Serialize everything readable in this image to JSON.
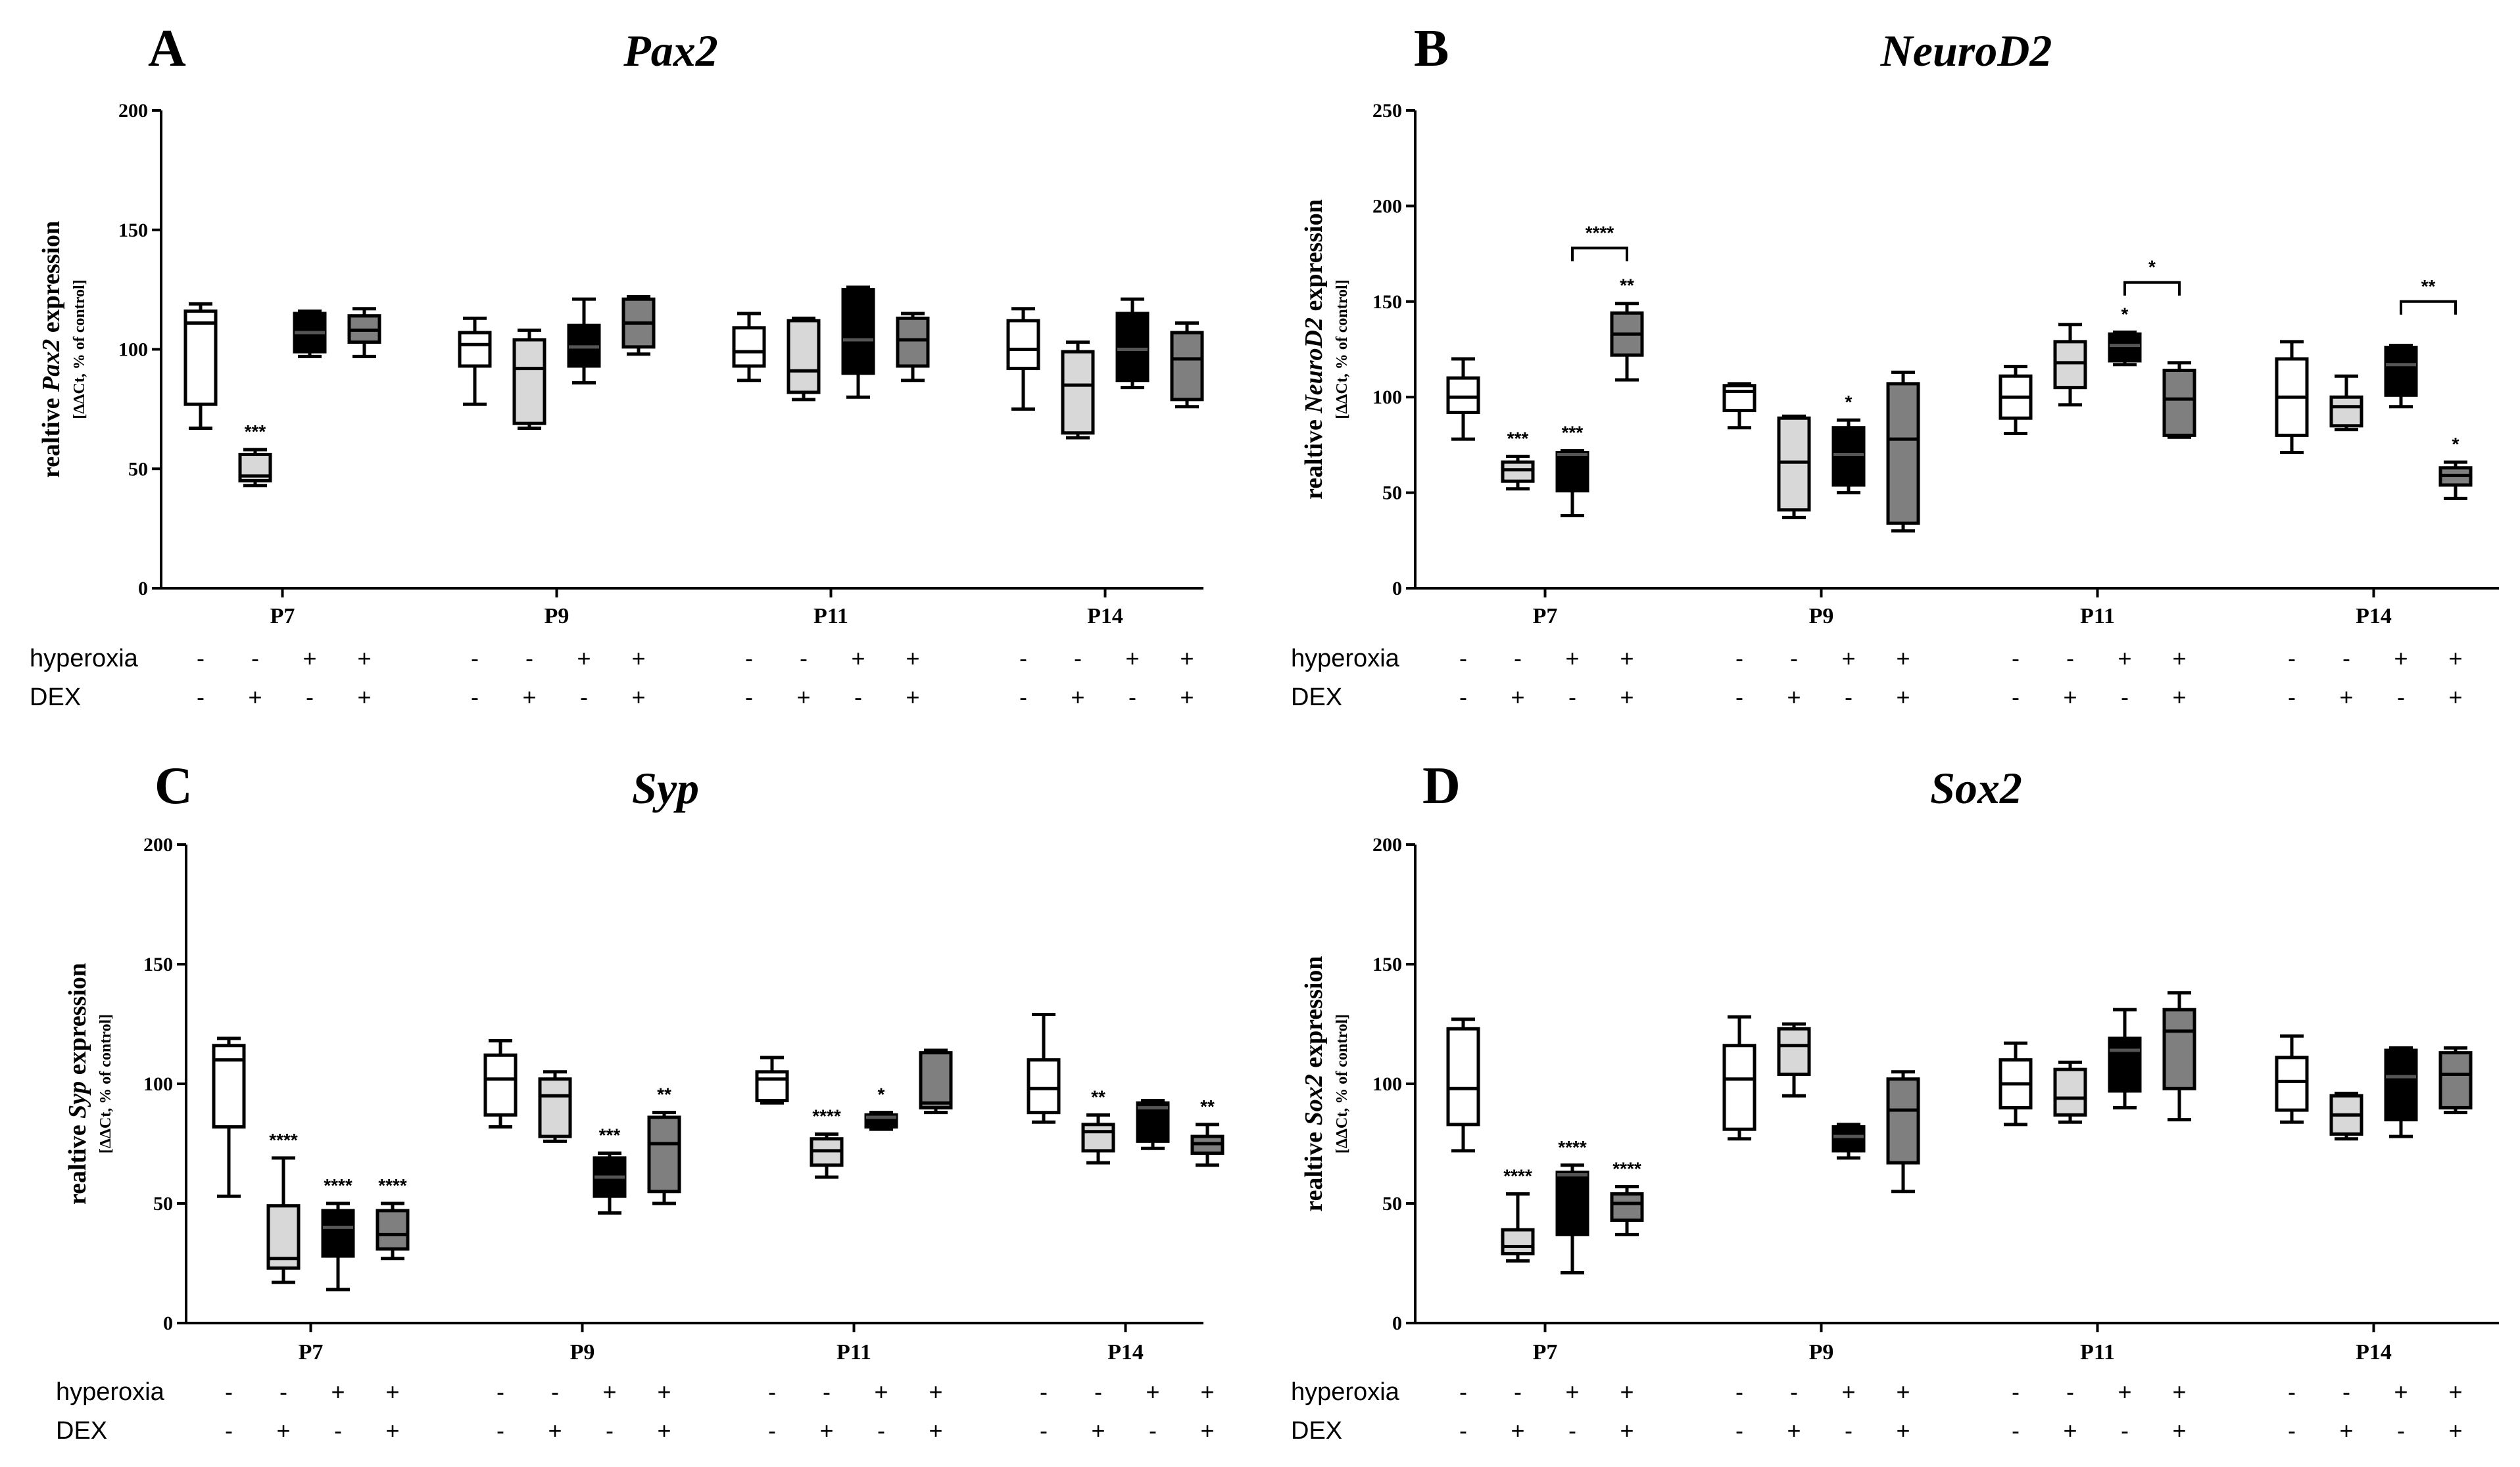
{
  "chart_data": [
    {
      "panel": "A",
      "type": "box",
      "title": "Pax2",
      "ylabel_parts": [
        "realtive ",
        "Pax2",
        " expression"
      ],
      "yunits": "[ΔΔCt, % of control]",
      "ylim": [
        0,
        200
      ],
      "yticks": [
        0,
        50,
        100,
        150,
        200
      ],
      "categories": [
        "P7",
        "P9",
        "P11",
        "P14"
      ],
      "treatments": {
        "hyperoxia_label": "hyperoxia",
        "dex_label": "DEX",
        "hyperoxia": [
          "-",
          "-",
          "+",
          "+"
        ],
        "dex": [
          "-",
          "+",
          "-",
          "+"
        ]
      },
      "groups": [
        {
          "name": "P7",
          "boxes": [
            {
              "min": 67,
              "q1": 77,
              "median": 111,
              "q3": 116,
              "max": 119
            },
            {
              "min": 43,
              "q1": 45,
              "median": 47,
              "q3": 56,
              "max": 58,
              "stars": "***"
            },
            {
              "min": 97,
              "q1": 99,
              "median": 107,
              "q3": 115,
              "max": 116
            },
            {
              "min": 97,
              "q1": 103,
              "median": 108,
              "q3": 114,
              "max": 117
            }
          ]
        },
        {
          "name": "P9",
          "boxes": [
            {
              "min": 77,
              "q1": 93,
              "median": 102,
              "q3": 107,
              "max": 113
            },
            {
              "min": 67,
              "q1": 69,
              "median": 92,
              "q3": 104,
              "max": 108
            },
            {
              "min": 86,
              "q1": 93,
              "median": 101,
              "q3": 110,
              "max": 121
            },
            {
              "min": 98,
              "q1": 101,
              "median": 111,
              "q3": 121,
              "max": 122
            }
          ]
        },
        {
          "name": "P11",
          "boxes": [
            {
              "min": 87,
              "q1": 93,
              "median": 99,
              "q3": 109,
              "max": 115
            },
            {
              "min": 79,
              "q1": 82,
              "median": 91,
              "q3": 112,
              "max": 113
            },
            {
              "min": 80,
              "q1": 90,
              "median": 104,
              "q3": 125,
              "max": 126
            },
            {
              "min": 87,
              "q1": 93,
              "median": 104,
              "q3": 113,
              "max": 115
            }
          ]
        },
        {
          "name": "P14",
          "boxes": [
            {
              "min": 75,
              "q1": 92,
              "median": 100,
              "q3": 112,
              "max": 117
            },
            {
              "min": 63,
              "q1": 65,
              "median": 85,
              "q3": 99,
              "max": 103
            },
            {
              "min": 84,
              "q1": 87,
              "median": 100,
              "q3": 115,
              "max": 121
            },
            {
              "min": 76,
              "q1": 79,
              "median": 96,
              "q3": 107,
              "max": 111
            }
          ]
        }
      ],
      "brackets": []
    },
    {
      "panel": "B",
      "type": "box",
      "title": "NeuroD2",
      "ylabel_parts": [
        "realtive ",
        "NeuroD2",
        " expression"
      ],
      "yunits": "[ΔΔCt, % of control]",
      "ylim": [
        0,
        250
      ],
      "yticks": [
        0,
        50,
        100,
        150,
        200,
        250
      ],
      "categories": [
        "P7",
        "P9",
        "P11",
        "P14"
      ],
      "treatments": {
        "hyperoxia_label": "hyperoxia",
        "dex_label": "DEX",
        "hyperoxia": [
          "-",
          "-",
          "+",
          "+"
        ],
        "dex": [
          "-",
          "+",
          "-",
          "+"
        ]
      },
      "groups": [
        {
          "name": "P7",
          "boxes": [
            {
              "min": 78,
              "q1": 92,
              "median": 100,
              "q3": 110,
              "max": 120
            },
            {
              "min": 52,
              "q1": 56,
              "median": 62,
              "q3": 66,
              "max": 69,
              "stars": "***"
            },
            {
              "min": 38,
              "q1": 51,
              "median": 70,
              "q3": 71,
              "max": 72,
              "stars": "***"
            },
            {
              "min": 109,
              "q1": 122,
              "median": 133,
              "q3": 144,
              "max": 149,
              "stars": "**"
            }
          ]
        },
        {
          "name": "P9",
          "boxes": [
            {
              "min": 84,
              "q1": 93,
              "median": 103,
              "q3": 106,
              "max": 107
            },
            {
              "min": 37,
              "q1": 41,
              "median": 66,
              "q3": 89,
              "max": 90
            },
            {
              "min": 50,
              "q1": 54,
              "median": 70,
              "q3": 84,
              "max": 88,
              "stars": "*"
            },
            {
              "min": 30,
              "q1": 34,
              "median": 78,
              "q3": 107,
              "max": 113
            }
          ]
        },
        {
          "name": "P11",
          "boxes": [
            {
              "min": 81,
              "q1": 89,
              "median": 100,
              "q3": 111,
              "max": 116
            },
            {
              "min": 96,
              "q1": 105,
              "median": 118,
              "q3": 129,
              "max": 138
            },
            {
              "min": 117,
              "q1": 119,
              "median": 127,
              "q3": 133,
              "max": 134,
              "stars": "*"
            },
            {
              "min": 79,
              "q1": 80,
              "median": 99,
              "q3": 114,
              "max": 118
            }
          ]
        },
        {
          "name": "P14",
          "boxes": [
            {
              "min": 71,
              "q1": 80,
              "median": 100,
              "q3": 120,
              "max": 129
            },
            {
              "min": 83,
              "q1": 85,
              "median": 95,
              "q3": 100,
              "max": 111
            },
            {
              "min": 95,
              "q1": 101,
              "median": 117,
              "q3": 126,
              "max": 127
            },
            {
              "min": 47,
              "q1": 54,
              "median": 59,
              "q3": 63,
              "max": 66,
              "stars": "*"
            }
          ]
        }
      ],
      "brackets": [
        {
          "group": 0,
          "from": 2,
          "to": 3,
          "level": 178,
          "stars": "****"
        },
        {
          "group": 2,
          "from": 2,
          "to": 3,
          "level": 160,
          "stars": "*"
        },
        {
          "group": 3,
          "from": 2,
          "to": 3,
          "level": 150,
          "stars": "**"
        }
      ]
    },
    {
      "panel": "C",
      "type": "box",
      "title": "Syp",
      "ylabel_parts": [
        "realtive ",
        "Syp",
        " expression"
      ],
      "yunits": "[ΔΔCt, % of control]",
      "ylim": [
        0,
        200
      ],
      "yticks": [
        0,
        50,
        100,
        150,
        200
      ],
      "categories": [
        "P7",
        "P9",
        "P11",
        "P14"
      ],
      "treatments": {
        "hyperoxia_label": "hyperoxia",
        "dex_label": "DEX",
        "hyperoxia": [
          "-",
          "-",
          "+",
          "+"
        ],
        "dex": [
          "-",
          "+",
          "-",
          "+"
        ]
      },
      "groups": [
        {
          "name": "P7",
          "boxes": [
            {
              "min": 53,
              "q1": 82,
              "median": 110,
              "q3": 116,
              "max": 119
            },
            {
              "min": 17,
              "q1": 23,
              "median": 27,
              "q3": 49,
              "max": 69,
              "stars": "****"
            },
            {
              "min": 14,
              "q1": 28,
              "median": 40,
              "q3": 47,
              "max": 50,
              "stars": "****"
            },
            {
              "min": 27,
              "q1": 31,
              "median": 37,
              "q3": 47,
              "max": 50,
              "stars": "****"
            }
          ]
        },
        {
          "name": "P9",
          "boxes": [
            {
              "min": 82,
              "q1": 87,
              "median": 102,
              "q3": 112,
              "max": 118
            },
            {
              "min": 76,
              "q1": 78,
              "median": 95,
              "q3": 102,
              "max": 105
            },
            {
              "min": 46,
              "q1": 53,
              "median": 61,
              "q3": 69,
              "max": 71,
              "stars": "***"
            },
            {
              "min": 50,
              "q1": 55,
              "median": 75,
              "q3": 86,
              "max": 88,
              "stars": "**"
            }
          ]
        },
        {
          "name": "P11",
          "boxes": [
            {
              "min": 92,
              "q1": 93,
              "median": 102,
              "q3": 105,
              "max": 111
            },
            {
              "min": 61,
              "q1": 66,
              "median": 72,
              "q3": 77,
              "max": 79,
              "stars": "****"
            },
            {
              "min": 81,
              "q1": 82,
              "median": 86,
              "q3": 87,
              "max": 88,
              "stars": "*"
            },
            {
              "min": 88,
              "q1": 90,
              "median": 92,
              "q3": 113,
              "max": 114
            }
          ]
        },
        {
          "name": "P14",
          "boxes": [
            {
              "min": 84,
              "q1": 88,
              "median": 98,
              "q3": 110,
              "max": 129
            },
            {
              "min": 67,
              "q1": 72,
              "median": 80,
              "q3": 83,
              "max": 87,
              "stars": "**"
            },
            {
              "min": 73,
              "q1": 76,
              "median": 90,
              "q3": 92,
              "max": 93
            },
            {
              "min": 66,
              "q1": 71,
              "median": 75,
              "q3": 78,
              "max": 83,
              "stars": "**"
            }
          ]
        }
      ],
      "brackets": []
    },
    {
      "panel": "D",
      "type": "box",
      "title": "Sox2",
      "ylabel_parts": [
        "realtive ",
        "Sox2",
        " expression"
      ],
      "yunits": "[ΔΔCt, % of control]",
      "ylim": [
        0,
        200
      ],
      "yticks": [
        0,
        50,
        100,
        150,
        200
      ],
      "categories": [
        "P7",
        "P9",
        "P11",
        "P14"
      ],
      "treatments": {
        "hyperoxia_label": "hyperoxia",
        "dex_label": "DEX",
        "hyperoxia": [
          "-",
          "-",
          "+",
          "+"
        ],
        "dex": [
          "-",
          "+",
          "-",
          "+"
        ]
      },
      "groups": [
        {
          "name": "P7",
          "boxes": [
            {
              "min": 72,
              "q1": 83,
              "median": 98,
              "q3": 123,
              "max": 127
            },
            {
              "min": 26,
              "q1": 29,
              "median": 32,
              "q3": 39,
              "max": 54,
              "stars": "****"
            },
            {
              "min": 21,
              "q1": 37,
              "median": 62,
              "q3": 63,
              "max": 66,
              "stars": "****"
            },
            {
              "min": 37,
              "q1": 43,
              "median": 50,
              "q3": 54,
              "max": 57,
              "stars": "****"
            }
          ]
        },
        {
          "name": "P9",
          "boxes": [
            {
              "min": 77,
              "q1": 81,
              "median": 102,
              "q3": 116,
              "max": 128
            },
            {
              "min": 95,
              "q1": 104,
              "median": 116,
              "q3": 123,
              "max": 125
            },
            {
              "min": 69,
              "q1": 72,
              "median": 78,
              "q3": 82,
              "max": 83
            },
            {
              "min": 55,
              "q1": 67,
              "median": 89,
              "q3": 102,
              "max": 105
            }
          ]
        },
        {
          "name": "P11",
          "boxes": [
            {
              "min": 83,
              "q1": 90,
              "median": 100,
              "q3": 110,
              "max": 117
            },
            {
              "min": 84,
              "q1": 87,
              "median": 94,
              "q3": 106,
              "max": 109
            },
            {
              "min": 90,
              "q1": 97,
              "median": 114,
              "q3": 119,
              "max": 131
            },
            {
              "min": 85,
              "q1": 98,
              "median": 122,
              "q3": 131,
              "max": 138
            }
          ]
        },
        {
          "name": "P14",
          "boxes": [
            {
              "min": 84,
              "q1": 89,
              "median": 101,
              "q3": 111,
              "max": 120
            },
            {
              "min": 77,
              "q1": 79,
              "median": 87,
              "q3": 95,
              "max": 96
            },
            {
              "min": 78,
              "q1": 85,
              "median": 103,
              "q3": 114,
              "max": 115
            },
            {
              "min": 88,
              "q1": 90,
              "median": 104,
              "q3": 113,
              "max": 115
            }
          ]
        }
      ],
      "brackets": []
    }
  ],
  "colors": {
    "fills": [
      "#ffffff",
      "#d8d8d8",
      "#000000",
      "#7f7f7f"
    ],
    "stroke": "#000000"
  }
}
